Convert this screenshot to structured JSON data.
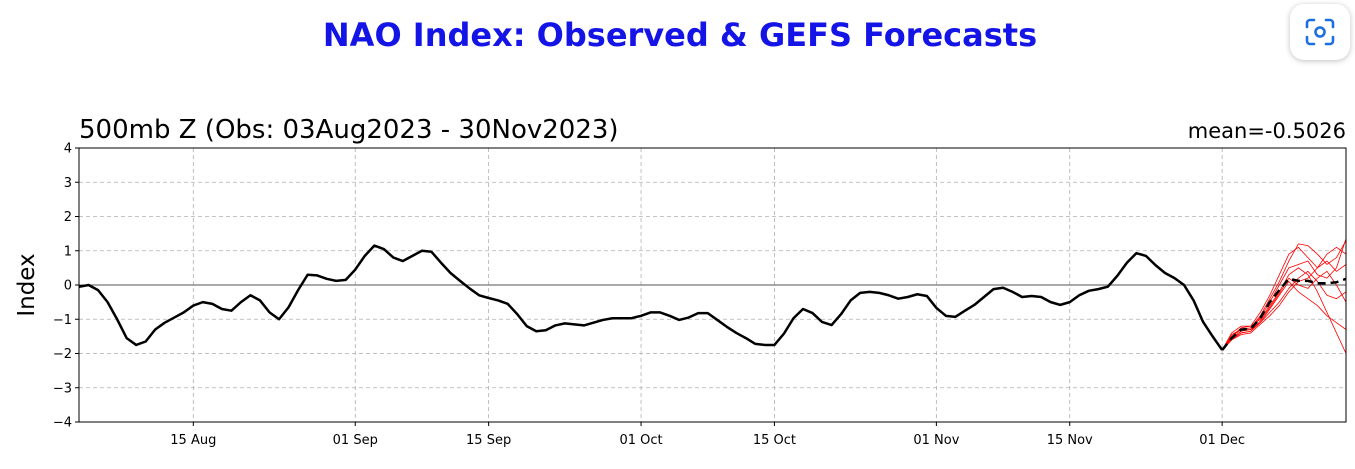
{
  "chart_data": {
    "type": "line",
    "title": "NAO Index: Observed & GEFS Forecasts",
    "subtitle": "500mb Z (Obs: 03Aug2023 - 30Nov2023)",
    "annotation": "mean=-0.5026",
    "y_label": "Index",
    "xlim": [
      0,
      133
    ],
    "ylim": [
      -4,
      4
    ],
    "xticks": [
      {
        "value": 12,
        "label": "15 Aug"
      },
      {
        "value": 29,
        "label": "01 Sep"
      },
      {
        "value": 43,
        "label": "15 Sep"
      },
      {
        "value": 59,
        "label": "01 Oct"
      },
      {
        "value": 73,
        "label": "15 Oct"
      },
      {
        "value": 90,
        "label": "01 Nov"
      },
      {
        "value": 104,
        "label": "15 Nov"
      },
      {
        "value": 120,
        "label": "01 Dec"
      }
    ],
    "yticks": [
      {
        "value": -4,
        "label": "−4"
      },
      {
        "value": -3,
        "label": "−3"
      },
      {
        "value": -2,
        "label": "−2"
      },
      {
        "value": -1,
        "label": "−1"
      },
      0,
      1,
      2,
      3,
      4
    ],
    "grid": true,
    "hline": 0,
    "series": [
      {
        "color": "#ff0000",
        "width": 0.8,
        "x": [
          120,
          121,
          122,
          123,
          124,
          125,
          126,
          127,
          128,
          129,
          130,
          131,
          132,
          133
        ],
        "values": [
          -1.9,
          -1.45,
          -1.3,
          -1.25,
          -0.9,
          -0.4,
          0.1,
          0.7,
          1.2,
          1.15,
          0.9,
          0.6,
          0.8,
          1.3
        ]
      },
      {
        "color": "#ff0000",
        "width": 0.8,
        "x": [
          120,
          121,
          122,
          123,
          124,
          125,
          126,
          127,
          128,
          129,
          130,
          131,
          132,
          133
        ],
        "values": [
          -1.9,
          -1.6,
          -1.4,
          -1.35,
          -1.1,
          -0.8,
          -0.5,
          -0.1,
          0.2,
          0.4,
          0.1,
          -0.3,
          -0.4,
          -0.2
        ]
      },
      {
        "color": "#ff0000",
        "width": 0.8,
        "x": [
          120,
          121,
          122,
          123,
          124,
          125,
          126,
          127,
          128,
          129,
          130,
          131,
          132,
          133
        ],
        "values": [
          -1.9,
          -1.5,
          -1.25,
          -1.2,
          -1.0,
          -0.6,
          -0.2,
          0.3,
          0.5,
          0.3,
          -0.2,
          -0.8,
          -1.4,
          -2.0
        ]
      },
      {
        "color": "#ff0000",
        "width": 0.8,
        "x": [
          120,
          121,
          122,
          123,
          124,
          125,
          126,
          127,
          128,
          129,
          130,
          131,
          132,
          133
        ],
        "values": [
          -1.9,
          -1.55,
          -1.35,
          -1.3,
          -1.1,
          -0.7,
          -0.3,
          0.1,
          -0.2,
          -0.4,
          -0.6,
          -0.9,
          -1.1,
          -1.3
        ]
      },
      {
        "color": "#ff0000",
        "width": 0.8,
        "x": [
          120,
          121,
          122,
          123,
          124,
          125,
          126,
          127,
          128,
          129,
          130,
          131,
          132,
          133
        ],
        "values": [
          -1.9,
          -1.4,
          -1.2,
          -1.2,
          -0.8,
          -0.3,
          0.3,
          0.9,
          1.1,
          0.8,
          0.5,
          0.9,
          1.1,
          0.9
        ]
      },
      {
        "color": "#ff0000",
        "width": 0.8,
        "x": [
          120,
          121,
          122,
          123,
          124,
          125,
          126,
          127,
          128,
          129,
          130,
          131,
          132,
          133
        ],
        "values": [
          -1.9,
          -1.6,
          -1.45,
          -1.4,
          -1.15,
          -0.9,
          -0.6,
          -0.2,
          0.1,
          0.2,
          0.5,
          0.7,
          0.4,
          0.6
        ]
      },
      {
        "color": "#ff0000",
        "width": 0.8,
        "x": [
          120,
          121,
          122,
          123,
          124,
          125,
          126,
          127,
          128,
          129,
          130,
          131,
          132,
          133
        ],
        "values": [
          -1.9,
          -1.5,
          -1.3,
          -1.3,
          -0.95,
          -0.5,
          0.0,
          0.5,
          0.6,
          0.7,
          0.3,
          0.2,
          0.5,
          1.35
        ]
      },
      {
        "color": "#ff0000",
        "width": 0.8,
        "x": [
          120,
          121,
          122,
          123,
          124,
          125,
          126,
          127,
          128,
          129,
          130,
          131,
          132,
          133
        ],
        "values": [
          -1.9,
          -1.55,
          -1.4,
          -1.35,
          -1.05,
          -0.65,
          -0.25,
          0.2,
          0.0,
          -0.1,
          0.2,
          0.4,
          0.0,
          -0.5
        ]
      },
      {
        "color": "#000000",
        "width": 2.5,
        "x": [
          0,
          1,
          2,
          3,
          4,
          5,
          6,
          7,
          8,
          9,
          10,
          11,
          12,
          13,
          14,
          15,
          16,
          17,
          18,
          19,
          20,
          21,
          22,
          23,
          24,
          25,
          26,
          27,
          28,
          29,
          30,
          31,
          32,
          33,
          34,
          35,
          36,
          37,
          38,
          39,
          40,
          41,
          42,
          43,
          44,
          45,
          46,
          47,
          48,
          49,
          50,
          51,
          52,
          53,
          54,
          55,
          56,
          57,
          58,
          59,
          60,
          61,
          62,
          63,
          64,
          65,
          66,
          67,
          68,
          69,
          70,
          71,
          72,
          73,
          74,
          75,
          76,
          77,
          78,
          79,
          80,
          81,
          82,
          83,
          84,
          85,
          86,
          87,
          88,
          89,
          90,
          91,
          92,
          93,
          94,
          95,
          96,
          97,
          98,
          99,
          100,
          101,
          102,
          103,
          104,
          105,
          106,
          107,
          108,
          109,
          110,
          111,
          112,
          113,
          114,
          115,
          116,
          117,
          118,
          119,
          120
        ],
        "values": [
          -0.05,
          0.0,
          -0.15,
          -0.5,
          -1.0,
          -1.55,
          -1.75,
          -1.65,
          -1.3,
          -1.1,
          -0.95,
          -0.8,
          -0.6,
          -0.5,
          -0.55,
          -0.7,
          -0.75,
          -0.5,
          -0.3,
          -0.45,
          -0.8,
          -1.0,
          -0.65,
          -0.15,
          0.3,
          0.28,
          0.18,
          0.12,
          0.15,
          0.45,
          0.85,
          1.15,
          1.05,
          0.8,
          0.7,
          0.85,
          1.0,
          0.97,
          0.65,
          0.35,
          0.12,
          -0.1,
          -0.3,
          -0.38,
          -0.45,
          -0.55,
          -0.85,
          -1.2,
          -1.35,
          -1.32,
          -1.18,
          -1.12,
          -1.15,
          -1.18,
          -1.1,
          -1.02,
          -0.97,
          -0.97,
          -0.97,
          -0.9,
          -0.8,
          -0.8,
          -0.9,
          -1.02,
          -0.95,
          -0.82,
          -0.82,
          -1.02,
          -1.22,
          -1.4,
          -1.55,
          -1.72,
          -1.75,
          -1.75,
          -1.42,
          -0.97,
          -0.7,
          -0.82,
          -1.08,
          -1.17,
          -0.85,
          -0.45,
          -0.23,
          -0.2,
          -0.23,
          -0.3,
          -0.4,
          -0.35,
          -0.27,
          -0.32,
          -0.67,
          -0.9,
          -0.93,
          -0.75,
          -0.58,
          -0.35,
          -0.12,
          -0.08,
          -0.2,
          -0.35,
          -0.32,
          -0.35,
          -0.5,
          -0.58,
          -0.5,
          -0.3,
          -0.17,
          -0.12,
          -0.05,
          0.27,
          0.65,
          0.93,
          0.85,
          0.58,
          0.35,
          0.2,
          0.0,
          -0.45,
          -1.08,
          -1.5,
          -1.9
        ]
      },
      {
        "color": "#000000",
        "width": 2.5,
        "dashed": true,
        "x": [
          120,
          121,
          122,
          123,
          124,
          125,
          126,
          127,
          128,
          129,
          130,
          131,
          132,
          133
        ],
        "values": [
          -1.9,
          -1.55,
          -1.3,
          -1.28,
          -0.97,
          -0.5,
          -0.15,
          0.18,
          0.12,
          0.12,
          0.05,
          0.05,
          0.08,
          0.18
        ]
      }
    ]
  }
}
